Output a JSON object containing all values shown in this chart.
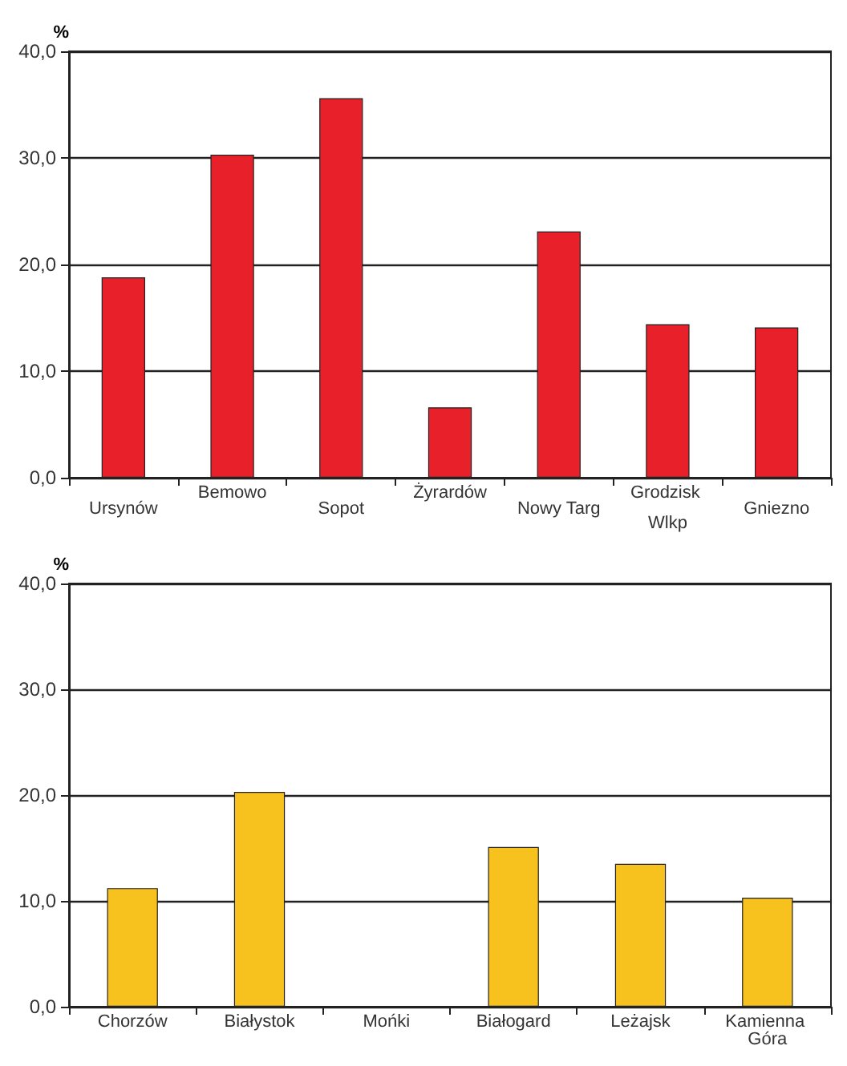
{
  "chart_data": [
    {
      "type": "bar",
      "ylabel": "%",
      "categories": [
        "Ursynów",
        "Bemowo",
        "Sopot",
        "Żyrardów",
        "Nowy Targ",
        "Grodzisk Wlkp",
        "Gniezno"
      ],
      "values": [
        18.8,
        30.3,
        35.6,
        6.6,
        23.1,
        14.4,
        14.1
      ],
      "color": "#e8202a",
      "ylim": [
        0,
        40
      ],
      "yticks": [
        {
          "value": 0,
          "label": "0,0"
        },
        {
          "value": 10,
          "label": "10,0"
        },
        {
          "value": 20,
          "label": "20,0"
        },
        {
          "value": 30,
          "label": "30,0"
        },
        {
          "value": 40,
          "label": "40,0"
        }
      ],
      "grid": "y"
    },
    {
      "type": "bar",
      "ylabel": "%",
      "categories": [
        "Chorzów",
        "Białystok",
        "Mońki",
        "Białogard",
        "Leżajsk",
        "Kamienna Góra"
      ],
      "values": [
        11.2,
        20.3,
        null,
        15.1,
        13.5,
        10.3
      ],
      "color": "#f7c21e",
      "ylim": [
        0,
        40
      ],
      "yticks": [
        {
          "value": 0,
          "label": "0,0"
        },
        {
          "value": 10,
          "label": "10,0"
        },
        {
          "value": 20,
          "label": "20,0"
        },
        {
          "value": 30,
          "label": "30,0"
        },
        {
          "value": 40,
          "label": "40,0"
        }
      ],
      "grid": "y"
    }
  ]
}
